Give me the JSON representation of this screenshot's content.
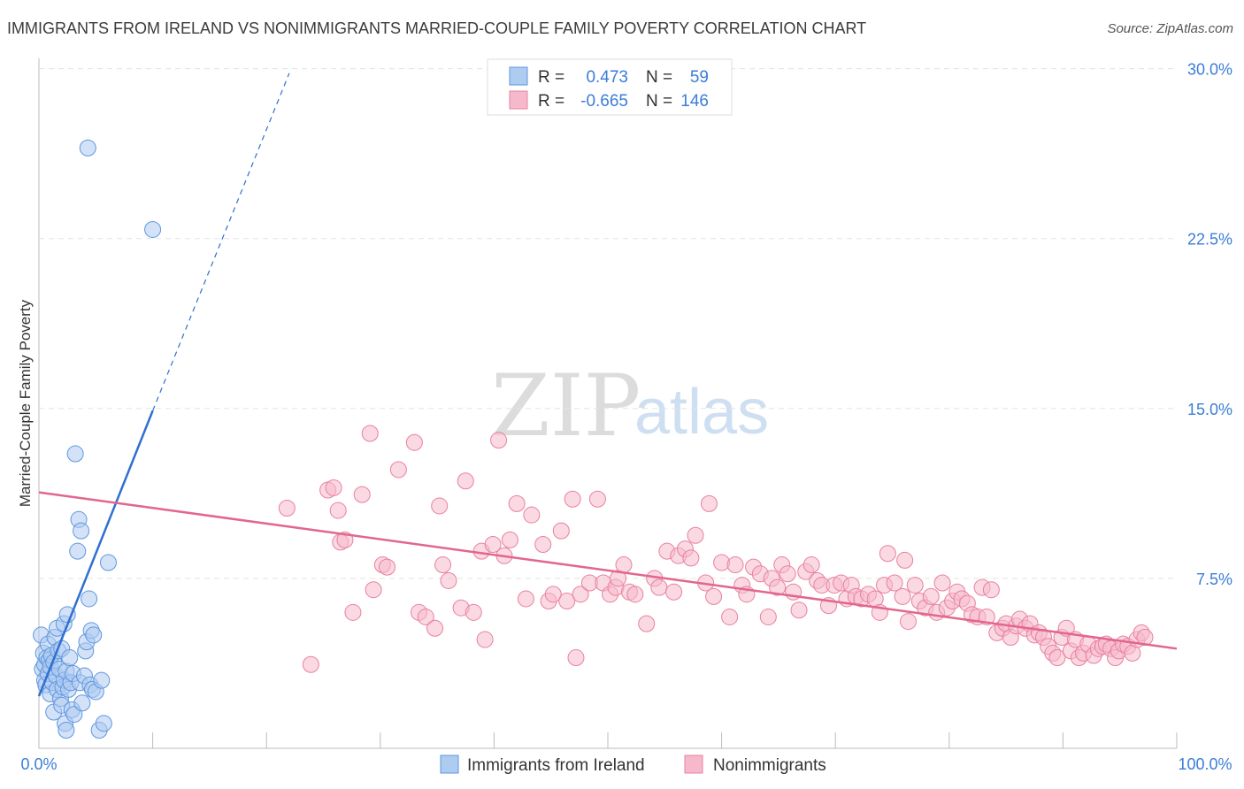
{
  "title": "IMMIGRANTS FROM IRELAND VS NONIMMIGRANTS MARRIED-COUPLE FAMILY POVERTY CORRELATION CHART",
  "source": "Source: ZipAtlas.com",
  "watermark": {
    "zip": "ZIP",
    "atlas": "atlas"
  },
  "legend_top": [
    {
      "r_label": "R =",
      "r_value": "0.473",
      "n_label": "N =",
      "n_value": "59"
    },
    {
      "r_label": "R =",
      "r_value": "-0.665",
      "n_label": "N =",
      "n_value": "146"
    }
  ],
  "legend_bottom": [
    "Immigrants from Ireland",
    "Nonimmigrants"
  ],
  "colors": {
    "blue_fill": "#aecbf0",
    "blue_stroke": "#5e97e0",
    "blue_line": "#2f6fd0",
    "pink_fill": "#f6b9cc",
    "pink_stroke": "#e9809f",
    "pink_line": "#e2668d",
    "tick": "#3b7dd8"
  },
  "chart_data": {
    "type": "scatter",
    "title": "IMMIGRANTS FROM IRELAND VS NONIMMIGRANTS MARRIED-COUPLE FAMILY POVERTY CORRELATION CHART",
    "xlabel": "",
    "ylabel": "Married-Couple Family Poverty",
    "xlim": [
      0,
      100
    ],
    "ylim": [
      0,
      31
    ],
    "x_tick_labels": [
      "0.0%",
      "100.0%"
    ],
    "y_ticks": [
      7.5,
      15.0,
      22.5,
      30.0
    ],
    "y_tick_labels": [
      "7.5%",
      "15.0%",
      "22.5%",
      "30.0%"
    ],
    "grid": "horizontal dashed",
    "legend_position": "top-center",
    "series": [
      {
        "name": "Immigrants from Ireland",
        "points": [
          [
            0.2,
            5.0
          ],
          [
            0.3,
            3.5
          ],
          [
            0.4,
            4.2
          ],
          [
            0.5,
            3.0
          ],
          [
            0.5,
            3.7
          ],
          [
            0.6,
            2.8
          ],
          [
            0.7,
            4.0
          ],
          [
            0.8,
            3.3
          ],
          [
            0.8,
            4.6
          ],
          [
            0.9,
            3.9
          ],
          [
            1.0,
            2.4
          ],
          [
            1.0,
            3.6
          ],
          [
            1.1,
            4.1
          ],
          [
            1.2,
            2.9
          ],
          [
            1.3,
            1.6
          ],
          [
            1.3,
            3.8
          ],
          [
            1.4,
            4.9
          ],
          [
            1.5,
            3.2
          ],
          [
            1.6,
            5.3
          ],
          [
            1.6,
            2.6
          ],
          [
            1.7,
            4.3
          ],
          [
            1.8,
            3.5
          ],
          [
            1.9,
            2.2
          ],
          [
            2.0,
            1.9
          ],
          [
            2.0,
            4.4
          ],
          [
            2.1,
            2.7
          ],
          [
            2.2,
            3.0
          ],
          [
            2.2,
            5.5
          ],
          [
            2.3,
            1.1
          ],
          [
            2.4,
            3.4
          ],
          [
            2.4,
            0.8
          ],
          [
            2.5,
            5.9
          ],
          [
            2.6,
            2.6
          ],
          [
            2.7,
            4.0
          ],
          [
            2.8,
            2.9
          ],
          [
            2.9,
            1.7
          ],
          [
            3.0,
            3.3
          ],
          [
            3.1,
            1.5
          ],
          [
            3.2,
            13.0
          ],
          [
            3.4,
            8.7
          ],
          [
            3.5,
            10.1
          ],
          [
            3.6,
            2.9
          ],
          [
            3.7,
            9.6
          ],
          [
            3.8,
            2.0
          ],
          [
            4.0,
            3.2
          ],
          [
            4.1,
            4.3
          ],
          [
            4.2,
            4.7
          ],
          [
            4.3,
            26.5
          ],
          [
            4.4,
            6.6
          ],
          [
            4.5,
            2.8
          ],
          [
            4.6,
            5.2
          ],
          [
            4.7,
            2.6
          ],
          [
            4.8,
            5.0
          ],
          [
            5.0,
            2.5
          ],
          [
            5.3,
            0.8
          ],
          [
            5.5,
            3.0
          ],
          [
            5.7,
            1.1
          ],
          [
            6.1,
            8.2
          ],
          [
            10.0,
            22.9
          ]
        ]
      },
      {
        "name": "Nonimmigrants",
        "points": [
          [
            21.8,
            10.6
          ],
          [
            23.9,
            3.7
          ],
          [
            25.4,
            11.4
          ],
          [
            25.9,
            11.5
          ],
          [
            26.3,
            10.5
          ],
          [
            26.5,
            9.1
          ],
          [
            26.9,
            9.2
          ],
          [
            27.6,
            6.0
          ],
          [
            28.4,
            11.2
          ],
          [
            29.1,
            13.9
          ],
          [
            29.4,
            7.0
          ],
          [
            30.2,
            8.1
          ],
          [
            30.6,
            8.0
          ],
          [
            31.6,
            12.3
          ],
          [
            33.0,
            13.5
          ],
          [
            33.4,
            6.0
          ],
          [
            34.0,
            5.8
          ],
          [
            34.8,
            5.3
          ],
          [
            35.2,
            10.7
          ],
          [
            35.5,
            8.1
          ],
          [
            36.0,
            7.4
          ],
          [
            37.1,
            6.2
          ],
          [
            37.5,
            11.8
          ],
          [
            38.2,
            6.0
          ],
          [
            38.9,
            8.7
          ],
          [
            39.2,
            4.8
          ],
          [
            39.9,
            9.0
          ],
          [
            40.4,
            13.6
          ],
          [
            40.9,
            8.5
          ],
          [
            41.4,
            9.2
          ],
          [
            42.0,
            10.8
          ],
          [
            42.8,
            6.6
          ],
          [
            43.3,
            10.3
          ],
          [
            44.3,
            9.0
          ],
          [
            44.8,
            6.5
          ],
          [
            45.2,
            6.8
          ],
          [
            45.9,
            9.6
          ],
          [
            46.4,
            6.5
          ],
          [
            46.9,
            11.0
          ],
          [
            47.2,
            4.0
          ],
          [
            47.6,
            6.8
          ],
          [
            48.4,
            7.3
          ],
          [
            49.1,
            11.0
          ],
          [
            49.6,
            7.3
          ],
          [
            50.2,
            6.8
          ],
          [
            50.7,
            7.1
          ],
          [
            50.9,
            7.5
          ],
          [
            51.4,
            8.1
          ],
          [
            51.9,
            6.9
          ],
          [
            52.4,
            6.8
          ],
          [
            53.4,
            5.5
          ],
          [
            54.1,
            7.5
          ],
          [
            54.5,
            7.1
          ],
          [
            55.2,
            8.7
          ],
          [
            55.8,
            6.9
          ],
          [
            56.2,
            8.5
          ],
          [
            56.8,
            8.8
          ],
          [
            57.3,
            8.4
          ],
          [
            57.7,
            9.4
          ],
          [
            58.6,
            7.3
          ],
          [
            58.9,
            10.8
          ],
          [
            59.3,
            6.7
          ],
          [
            60.0,
            8.2
          ],
          [
            60.7,
            5.8
          ],
          [
            61.2,
            8.1
          ],
          [
            61.8,
            7.2
          ],
          [
            62.2,
            6.8
          ],
          [
            62.8,
            8.0
          ],
          [
            63.4,
            7.7
          ],
          [
            64.1,
            5.8
          ],
          [
            64.4,
            7.5
          ],
          [
            64.9,
            7.1
          ],
          [
            65.3,
            8.1
          ],
          [
            65.8,
            7.7
          ],
          [
            66.3,
            6.9
          ],
          [
            66.8,
            6.1
          ],
          [
            67.4,
            7.8
          ],
          [
            67.9,
            8.1
          ],
          [
            68.4,
            7.4
          ],
          [
            68.8,
            7.2
          ],
          [
            69.4,
            6.3
          ],
          [
            69.9,
            7.2
          ],
          [
            70.5,
            7.3
          ],
          [
            71.0,
            6.6
          ],
          [
            71.4,
            7.2
          ],
          [
            71.8,
            6.7
          ],
          [
            72.3,
            6.6
          ],
          [
            72.9,
            6.8
          ],
          [
            73.5,
            6.6
          ],
          [
            73.9,
            6.0
          ],
          [
            74.3,
            7.2
          ],
          [
            74.6,
            8.6
          ],
          [
            75.2,
            7.3
          ],
          [
            75.9,
            6.7
          ],
          [
            76.1,
            8.3
          ],
          [
            76.4,
            5.6
          ],
          [
            77.0,
            7.2
          ],
          [
            77.4,
            6.5
          ],
          [
            77.9,
            6.2
          ],
          [
            78.4,
            6.7
          ],
          [
            78.9,
            6.0
          ],
          [
            79.4,
            7.3
          ],
          [
            79.8,
            6.2
          ],
          [
            80.3,
            6.5
          ],
          [
            80.7,
            6.9
          ],
          [
            81.1,
            6.6
          ],
          [
            81.6,
            6.4
          ],
          [
            82.0,
            5.9
          ],
          [
            82.5,
            5.8
          ],
          [
            82.9,
            7.1
          ],
          [
            83.3,
            5.8
          ],
          [
            83.7,
            7.0
          ],
          [
            84.2,
            5.1
          ],
          [
            84.7,
            5.3
          ],
          [
            85.0,
            5.5
          ],
          [
            85.4,
            4.9
          ],
          [
            85.9,
            5.4
          ],
          [
            86.2,
            5.7
          ],
          [
            86.7,
            5.3
          ],
          [
            87.1,
            5.5
          ],
          [
            87.5,
            5.0
          ],
          [
            87.9,
            5.1
          ],
          [
            88.3,
            4.9
          ],
          [
            88.7,
            4.5
          ],
          [
            89.1,
            4.2
          ],
          [
            89.5,
            4.0
          ],
          [
            89.9,
            4.9
          ],
          [
            90.3,
            5.3
          ],
          [
            90.7,
            4.3
          ],
          [
            91.1,
            4.8
          ],
          [
            91.4,
            4.0
          ],
          [
            91.8,
            4.2
          ],
          [
            92.2,
            4.6
          ],
          [
            92.7,
            4.1
          ],
          [
            93.1,
            4.4
          ],
          [
            93.5,
            4.5
          ],
          [
            93.8,
            4.6
          ],
          [
            94.2,
            4.4
          ],
          [
            94.6,
            4.0
          ],
          [
            94.9,
            4.3
          ],
          [
            95.3,
            4.6
          ],
          [
            95.7,
            4.5
          ],
          [
            96.1,
            4.2
          ],
          [
            96.5,
            4.8
          ],
          [
            96.9,
            5.1
          ],
          [
            97.2,
            4.9
          ]
        ]
      }
    ],
    "trendlines": [
      {
        "series": "Immigrants from Ireland",
        "x0": 0.0,
        "y0": 2.3,
        "x1": 10.0,
        "y1": 14.9,
        "extend_dashed_to": [
          22.0,
          29.8
        ]
      },
      {
        "series": "Nonimmigrants",
        "x0": 0.0,
        "y0": 11.3,
        "x1": 100.0,
        "y1": 4.4
      }
    ]
  }
}
